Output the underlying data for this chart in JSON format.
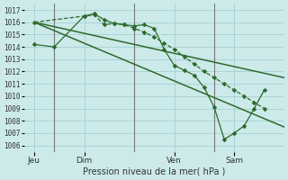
{
  "xlabel": "Pression niveau de la mer( hPa )",
  "bg_color": "#cdeaea",
  "grid_color": "#a8d4d4",
  "line_color": "#2d6a2d",
  "ylim": [
    1005.5,
    1017.5
  ],
  "yticks": [
    1006,
    1007,
    1008,
    1009,
    1010,
    1011,
    1012,
    1013,
    1014,
    1015,
    1016,
    1017
  ],
  "xlim": [
    0,
    13
  ],
  "xtick_labels": [
    "Jeu",
    "Dim",
    "Ven",
    "Sam"
  ],
  "xtick_positions": [
    0.5,
    3.0,
    7.5,
    10.5
  ],
  "vline_positions": [
    1.5,
    5.5,
    9.5
  ],
  "line1_x": [
    0.5,
    3.0,
    3.5,
    4.0,
    4.5,
    5.0,
    5.5,
    6.0,
    6.5,
    7.0,
    7.5,
    8.0,
    8.5,
    9.0,
    9.5,
    10.0,
    10.5,
    11.0,
    11.5,
    12.0
  ],
  "line1_y": [
    1016.0,
    1016.5,
    1016.6,
    1015.8,
    1015.9,
    1015.8,
    1015.5,
    1015.2,
    1014.8,
    1014.3,
    1013.8,
    1013.2,
    1012.6,
    1012.0,
    1011.5,
    1011.0,
    1010.5,
    1010.0,
    1009.5,
    1009.0
  ],
  "line1_style": "--",
  "line1_marker": "D",
  "line2_x": [
    0.5,
    13.0
  ],
  "line2_y": [
    1016.0,
    1011.5
  ],
  "line2_style": "-",
  "line2_marker": null,
  "line3_x": [
    0.5,
    13.0
  ],
  "line3_y": [
    1016.0,
    1007.5
  ],
  "line3_style": "-",
  "line3_marker": null,
  "line4_x": [
    0.5,
    1.5,
    3.0,
    3.5,
    4.0,
    4.5,
    5.0,
    5.5,
    6.0,
    6.5,
    7.0,
    7.5,
    8.0,
    8.5,
    9.0,
    9.5,
    10.0,
    10.5,
    11.0,
    11.5,
    12.0
  ],
  "line4_y": [
    1014.2,
    1014.0,
    1016.5,
    1016.7,
    1016.2,
    1015.9,
    1015.8,
    1015.7,
    1015.8,
    1015.5,
    1013.8,
    1012.5,
    1012.1,
    1011.7,
    1010.7,
    1009.1,
    1006.5,
    1007.0,
    1007.6,
    1009.0,
    1010.5
  ],
  "line4_style": "-",
  "line4_marker": "D"
}
